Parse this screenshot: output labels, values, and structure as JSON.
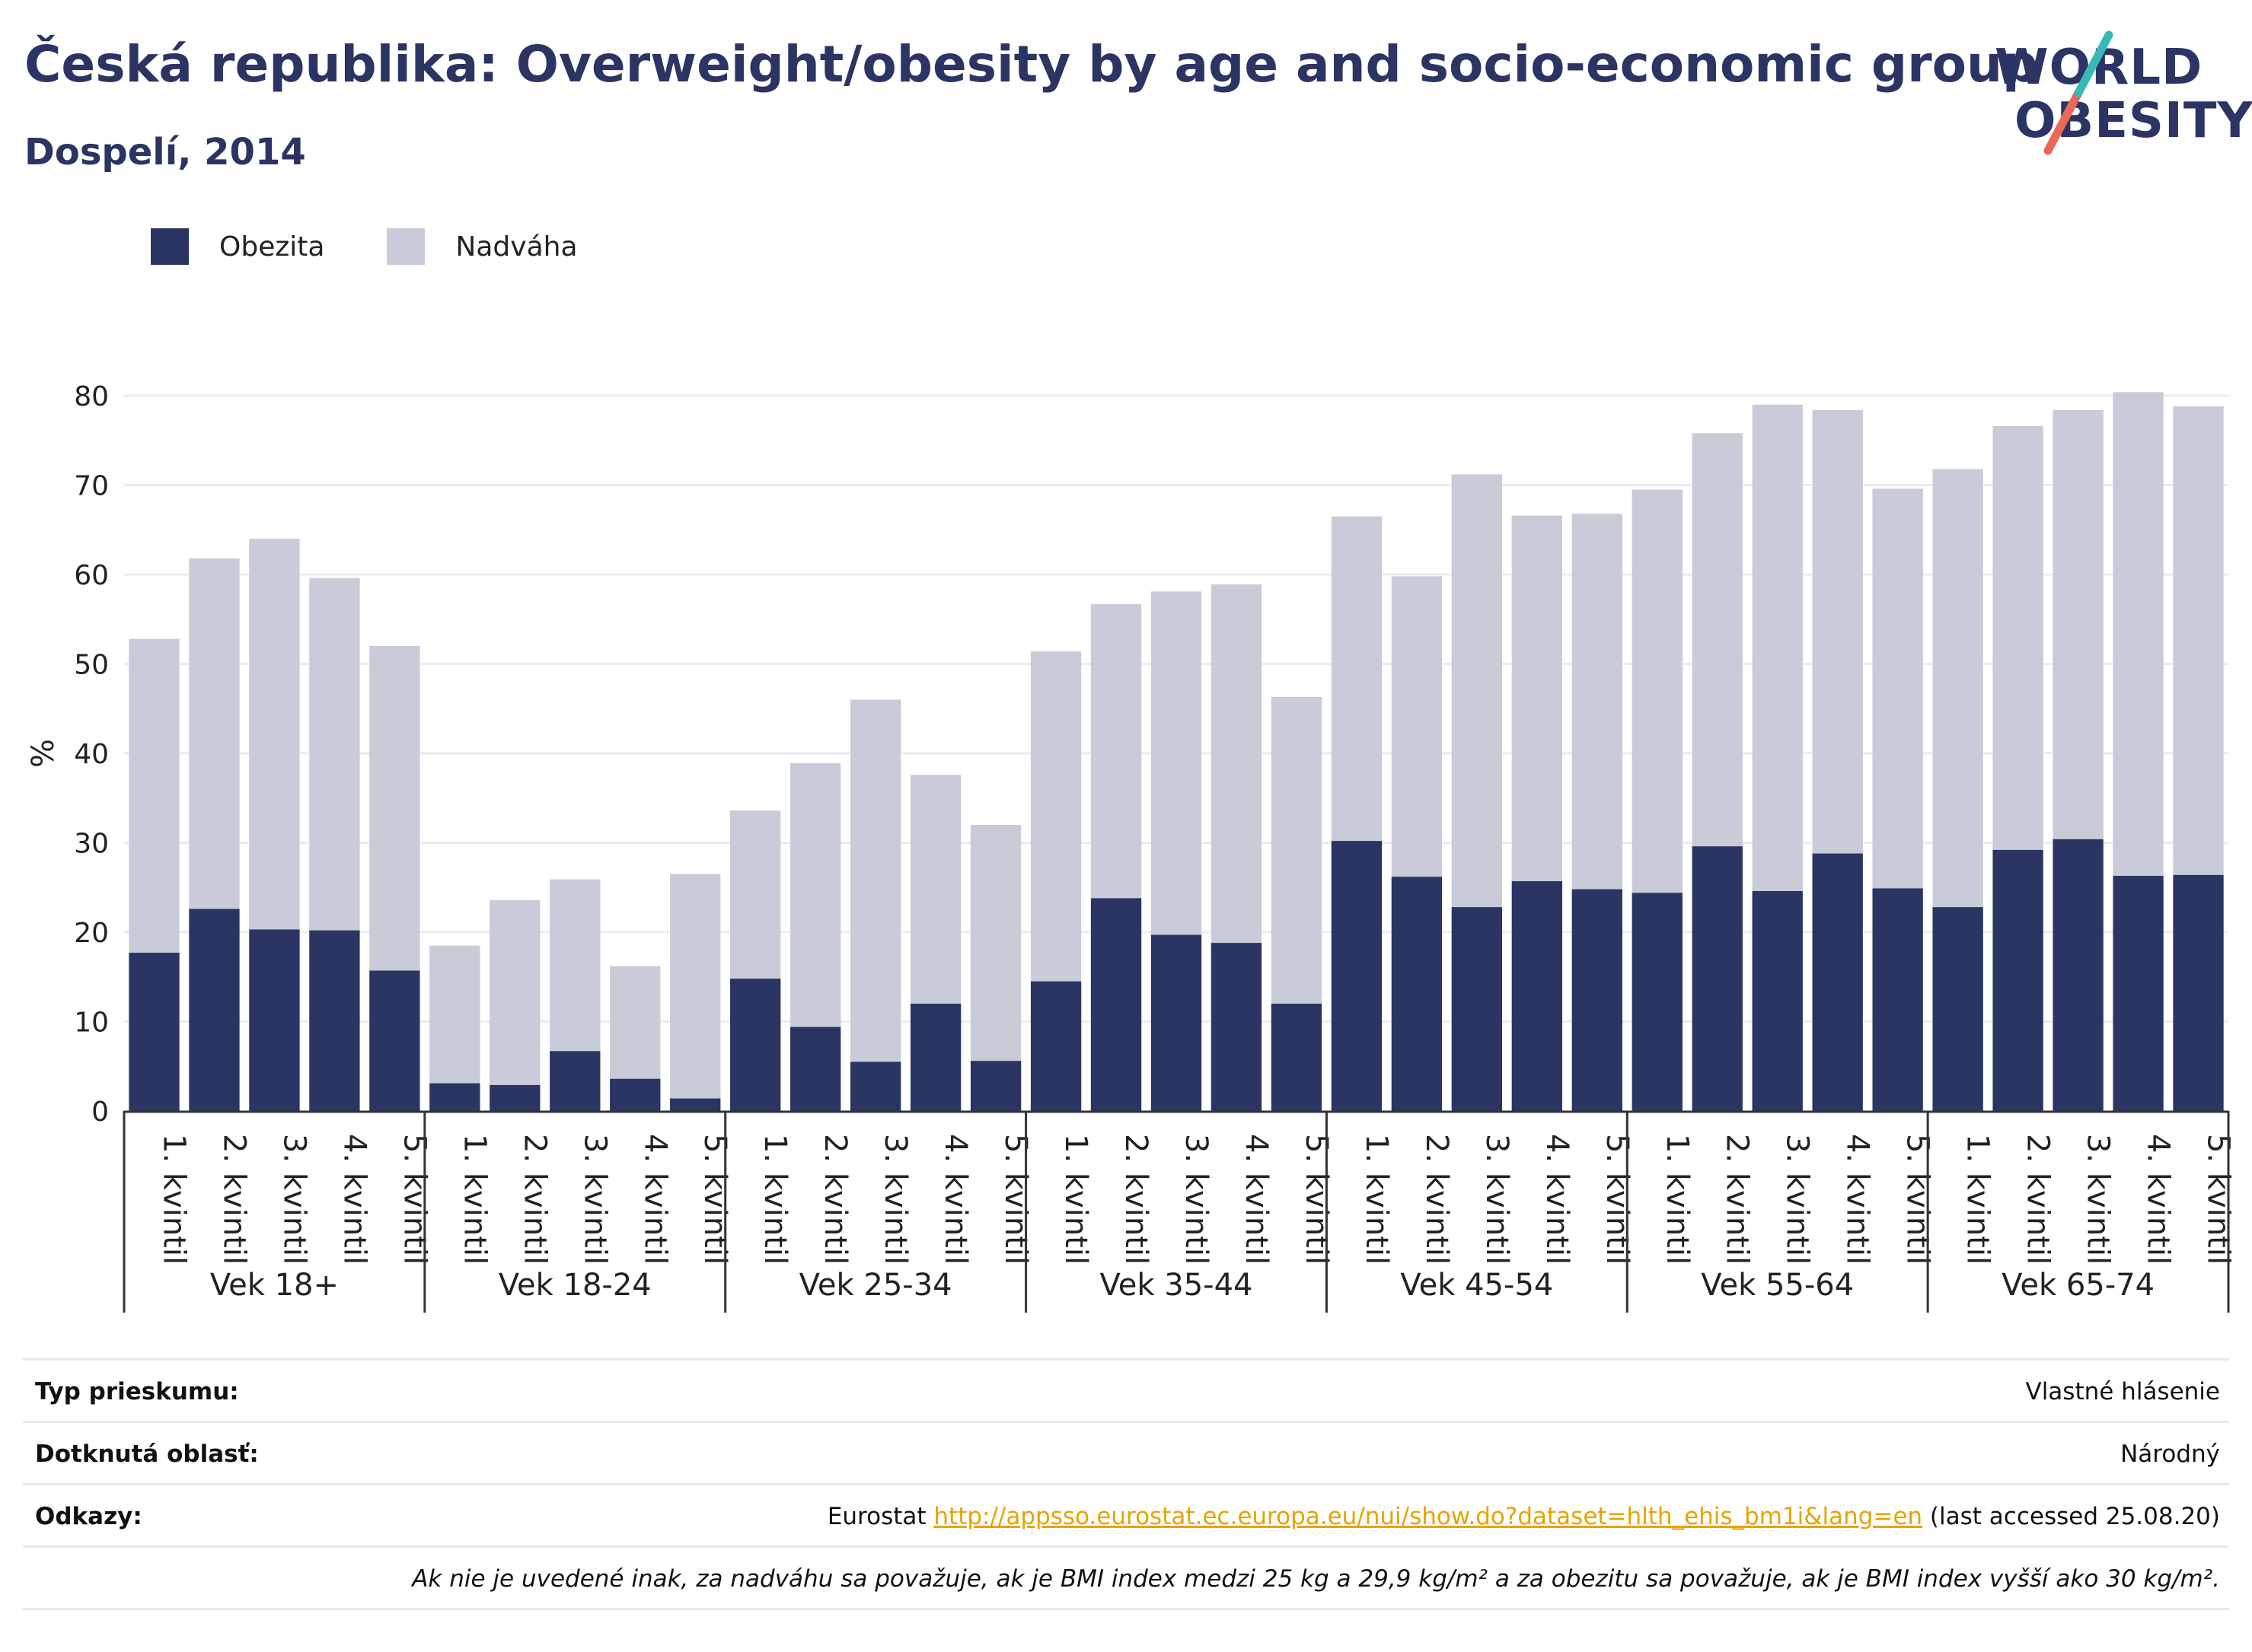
{
  "header": {
    "title": "Česká republika: Overweight/obesity by age and socio-economic group",
    "subtitle": "Dospelí, 2014"
  },
  "logo": {
    "line1": "WORLD",
    "line2": "OBESITY"
  },
  "colors": {
    "obezita": "#2a3563",
    "nadvaha": "#c9cbd8",
    "accent_teal": "#3ab8b8",
    "accent_red": "#e8685a",
    "link": "#e5a400"
  },
  "chart_data": {
    "type": "bar",
    "stacked": true,
    "ylabel": "%",
    "xlabel": "",
    "ylim": [
      0,
      80
    ],
    "yticks": [
      0,
      10,
      20,
      30,
      40,
      50,
      60,
      70,
      80
    ],
    "grid": true,
    "legend_position": "top-left",
    "groups": [
      "Vek 18+",
      "Vek 18-24",
      "Vek 25-34",
      "Vek 35-44",
      "Vek 45-54",
      "Vek 55-64",
      "Vek 65-74"
    ],
    "categories": [
      "1. kvintil",
      "2. kvintil",
      "3. kvintil",
      "4. kvintil",
      "5. kvintil"
    ],
    "series": [
      {
        "name": "Obezita",
        "values": [
          [
            17.7,
            22.6,
            20.3,
            20.2,
            15.7
          ],
          [
            3.1,
            2.9,
            6.7,
            3.6,
            1.4
          ],
          [
            14.8,
            9.4,
            5.5,
            12.0,
            5.6
          ],
          [
            14.5,
            23.8,
            19.7,
            18.8,
            12.0
          ],
          [
            30.2,
            26.2,
            22.8,
            25.7,
            24.8
          ],
          [
            24.4,
            29.6,
            24.6,
            28.8,
            24.9
          ],
          [
            22.8,
            29.2,
            30.4,
            26.3,
            26.4
          ]
        ]
      },
      {
        "name": "Nadváha",
        "values": [
          [
            35.1,
            39.2,
            43.7,
            39.4,
            36.3
          ],
          [
            15.4,
            20.7,
            19.2,
            12.6,
            25.1
          ],
          [
            18.8,
            29.5,
            40.5,
            25.6,
            26.4
          ],
          [
            36.9,
            32.9,
            38.4,
            40.1,
            34.3
          ],
          [
            36.3,
            33.6,
            48.4,
            40.9,
            42.0
          ],
          [
            45.1,
            46.2,
            54.4,
            49.6,
            44.7
          ],
          [
            49.0,
            47.4,
            48.0,
            54.1,
            52.4
          ]
        ]
      }
    ]
  },
  "info": {
    "survey_type_label": "Typ prieskumu:",
    "survey_type_value": "Vlastné hlásenie",
    "area_label": "Dotknutá oblasť:",
    "area_value": "Národný",
    "refs_label": "Odkazy:",
    "refs_prefix": "Eurostat ",
    "refs_link": "http://appsso.eurostat.ec.europa.eu/nui/show.do?dataset=hlth_ehis_bm1i&lang=en",
    "refs_suffix": " (last accessed 25.08.20)",
    "note": "Ak nie je uvedené inak, za nadváhu sa považuje, ak je BMI index medzi 25 kg a 29,9 kg/m² a za obezitu sa považuje, ak je BMI index vyšší ako 30 kg/m²."
  }
}
